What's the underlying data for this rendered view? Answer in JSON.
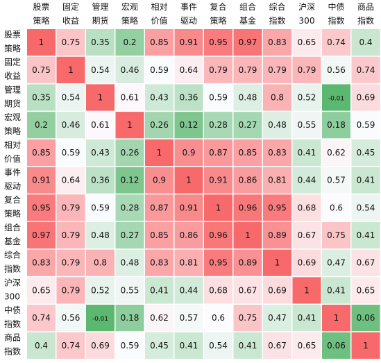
{
  "chart_data": {
    "type": "heatmap",
    "title": "",
    "column_labels": [
      [
        "股票",
        "策略"
      ],
      [
        "固定",
        "收益"
      ],
      [
        "管理",
        "期货"
      ],
      [
        "宏观",
        "策略"
      ],
      [
        "相对",
        "价值"
      ],
      [
        "事件",
        "驱动"
      ],
      [
        "复合",
        "策略"
      ],
      [
        "组合",
        "基金"
      ],
      [
        "综合",
        "指数"
      ],
      [
        "沪深",
        "300"
      ],
      [
        "中债",
        "指数"
      ],
      [
        "商品",
        "指数"
      ]
    ],
    "row_labels": [
      [
        "股票",
        "策略"
      ],
      [
        "固定",
        "收益"
      ],
      [
        "管理",
        "期货"
      ],
      [
        "宏观",
        "策略"
      ],
      [
        "相对",
        "价值"
      ],
      [
        "事件",
        "驱动"
      ],
      [
        "复合",
        "策略"
      ],
      [
        "组合",
        "基金"
      ],
      [
        "综合",
        "指数"
      ],
      [
        "沪深",
        "300"
      ],
      [
        "中债",
        "指数"
      ],
      [
        "商品",
        "指数"
      ]
    ],
    "values": [
      [
        1,
        0.75,
        0.35,
        0.2,
        0.85,
        0.91,
        0.95,
        0.97,
        0.83,
        0.65,
        0.74,
        0.4
      ],
      [
        0.75,
        1,
        0.54,
        0.46,
        0.59,
        0.64,
        0.79,
        0.79,
        0.79,
        0.79,
        0.56,
        0.74
      ],
      [
        0.35,
        0.54,
        1,
        0.61,
        0.43,
        0.36,
        0.59,
        0.48,
        0.8,
        0.52,
        -0.01,
        0.69
      ],
      [
        0.2,
        0.46,
        0.61,
        1,
        0.26,
        0.12,
        0.28,
        0.27,
        0.48,
        0.55,
        0.18,
        0.59
      ],
      [
        0.85,
        0.59,
        0.43,
        0.26,
        1,
        0.9,
        0.87,
        0.85,
        0.83,
        0.41,
        0.62,
        0.45
      ],
      [
        0.91,
        0.64,
        0.36,
        0.12,
        0.9,
        1,
        0.91,
        0.86,
        0.81,
        0.44,
        0.57,
        0.41
      ],
      [
        0.95,
        0.79,
        0.59,
        0.28,
        0.87,
        0.91,
        1,
        0.96,
        0.95,
        0.68,
        0.6,
        0.54
      ],
      [
        0.97,
        0.79,
        0.48,
        0.27,
        0.85,
        0.86,
        0.96,
        1,
        0.89,
        0.67,
        0.75,
        0.41
      ],
      [
        0.83,
        0.79,
        0.8,
        0.48,
        0.83,
        0.81,
        0.95,
        0.89,
        1,
        0.69,
        0.47,
        0.67
      ],
      [
        0.65,
        0.79,
        0.52,
        0.55,
        0.41,
        0.44,
        0.68,
        0.67,
        0.69,
        1,
        0.41,
        0.65
      ],
      [
        0.74,
        0.56,
        -0.01,
        0.18,
        0.62,
        0.57,
        0.6,
        0.75,
        0.47,
        0.41,
        1,
        0.06
      ],
      [
        0.4,
        0.74,
        0.69,
        0.59,
        0.45,
        0.41,
        0.54,
        0.41,
        0.67,
        0.65,
        0.06,
        1
      ]
    ],
    "value_labels": [
      [
        "1",
        "0.75",
        "0.35",
        "0.2",
        "0.85",
        "0.91",
        "0.95",
        "0.97",
        "0.83",
        "0.65",
        "0.74",
        "0.4"
      ],
      [
        "0.75",
        "1",
        "0.54",
        "0.46",
        "0.59",
        "0.64",
        "0.79",
        "0.79",
        "0.79",
        "0.79",
        "0.56",
        "0.74"
      ],
      [
        "0.35",
        "0.54",
        "1",
        "0.61",
        "0.43",
        "0.36",
        "0.59",
        "0.48",
        "0.8",
        "0.52",
        "-0.01",
        "0.69"
      ],
      [
        "0.2",
        "0.46",
        "0.61",
        "1",
        "0.26",
        "0.12",
        "0.28",
        "0.27",
        "0.48",
        "0.55",
        "0.18",
        "0.59"
      ],
      [
        "0.85",
        "0.59",
        "0.43",
        "0.26",
        "1",
        "0.9",
        "0.87",
        "0.85",
        "0.83",
        "0.41",
        "0.62",
        "0.45"
      ],
      [
        "0.91",
        "0.64",
        "0.36",
        "0.12",
        "0.9",
        "1",
        "0.91",
        "0.86",
        "0.81",
        "0.44",
        "0.57",
        "0.41"
      ],
      [
        "0.95",
        "0.79",
        "0.59",
        "0.28",
        "0.87",
        "0.91",
        "1",
        "0.96",
        "0.95",
        "0.68",
        "0.6",
        "0.54"
      ],
      [
        "0.97",
        "0.79",
        "0.48",
        "0.27",
        "0.85",
        "0.86",
        "0.96",
        "1",
        "0.89",
        "0.67",
        "0.75",
        "0.41"
      ],
      [
        "0.83",
        "0.79",
        "0.8",
        "0.48",
        "0.83",
        "0.81",
        "0.95",
        "0.89",
        "1",
        "0.69",
        "0.47",
        "0.67"
      ],
      [
        "0.65",
        "0.79",
        "0.52",
        "0.55",
        "0.41",
        "0.44",
        "0.68",
        "0.67",
        "0.69",
        "1",
        "0.41",
        "0.65"
      ],
      [
        "0.74",
        "0.56",
        "-0.01",
        "0.18",
        "0.62",
        "0.57",
        "0.6",
        "0.75",
        "0.47",
        "0.41",
        "1",
        "0.06"
      ],
      [
        "0.4",
        "0.74",
        "0.69",
        "0.59",
        "0.45",
        "0.41",
        "0.54",
        "0.41",
        "0.67",
        "0.65",
        "0.06",
        "1"
      ]
    ],
    "color_scale": {
      "low": "#5cb870",
      "mid": "#fcfcff",
      "high": "#f8696b",
      "mid_value": 0.6
    },
    "grid": false,
    "legend": "none"
  }
}
